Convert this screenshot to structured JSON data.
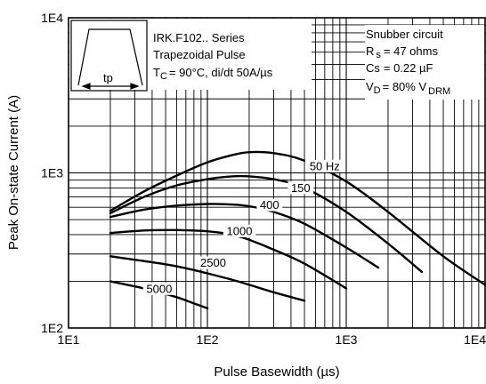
{
  "chart_data": {
    "type": "line",
    "x_scale": "log",
    "y_scale": "log",
    "xlim": [
      10,
      10000
    ],
    "ylim": [
      100,
      10000
    ],
    "xlabel": "Pulse Basewidth (µs)",
    "ylabel": "Peak On-state Current (A)",
    "x_ticks": [
      {
        "value": 10,
        "label": "1E1"
      },
      {
        "value": 100,
        "label": "1E2"
      },
      {
        "value": 1000,
        "label": "1E3"
      },
      {
        "value": 10000,
        "label": "1E4"
      }
    ],
    "y_ticks": [
      {
        "value": 100,
        "label": "1E2"
      },
      {
        "value": 1000,
        "label": "1E3"
      },
      {
        "value": 10000,
        "label": "1E4"
      }
    ],
    "grid": true,
    "series": [
      {
        "name": "50 Hz",
        "x": [
          20,
          35,
          60,
          100,
          150,
          200,
          300,
          500,
          1000,
          2000,
          5000,
          10000
        ],
        "y": [
          570,
          760,
          960,
          1170,
          1300,
          1360,
          1340,
          1200,
          880,
          560,
          290,
          190
        ]
      },
      {
        "name": "150",
        "x": [
          20,
          35,
          60,
          100,
          150,
          200,
          300,
          500,
          1000,
          2000,
          3500
        ],
        "y": [
          550,
          700,
          830,
          910,
          950,
          950,
          910,
          800,
          560,
          350,
          230
        ]
      },
      {
        "name": "400",
        "x": [
          20,
          35,
          60,
          100,
          150,
          200,
          300,
          500,
          1000,
          1700
        ],
        "y": [
          520,
          580,
          615,
          630,
          625,
          610,
          560,
          470,
          330,
          245
        ]
      },
      {
        "name": "1000",
        "x": [
          20,
          35,
          60,
          100,
          150,
          200,
          300,
          500,
          1000
        ],
        "y": [
          410,
          425,
          428,
          420,
          400,
          370,
          320,
          260,
          180
        ]
      },
      {
        "name": "2500",
        "x": [
          20,
          35,
          60,
          100,
          150,
          200,
          300,
          500
        ],
        "y": [
          290,
          270,
          250,
          225,
          205,
          190,
          170,
          150
        ]
      },
      {
        "name": "5000",
        "x": [
          20,
          35,
          60,
          80,
          100
        ],
        "y": [
          200,
          180,
          158,
          144,
          134
        ]
      }
    ],
    "curve_labels": [
      "50 Hz",
      "150",
      "400",
      "1000",
      "2500",
      "5000"
    ],
    "annotations": {
      "waveform_label": "tp",
      "device_line": "IRK.F102.. Series",
      "pulse_line": "Trapezoidal Pulse",
      "tc_main": "T",
      "tc_sub": "C",
      "tc_rest": "= 90°C, di/dt 50A/µs",
      "snubber": "Snubber circuit",
      "rs_main": "R",
      "rs_sub": "s",
      "rs_rest": "= 47 ohms",
      "cs_main": "Cs",
      "cs_rest": "= 0.22 µF",
      "vd_main": "V",
      "vd_sub": "D",
      "vd_rest": "= 80% V",
      "vd_sub2": "DRM"
    }
  }
}
